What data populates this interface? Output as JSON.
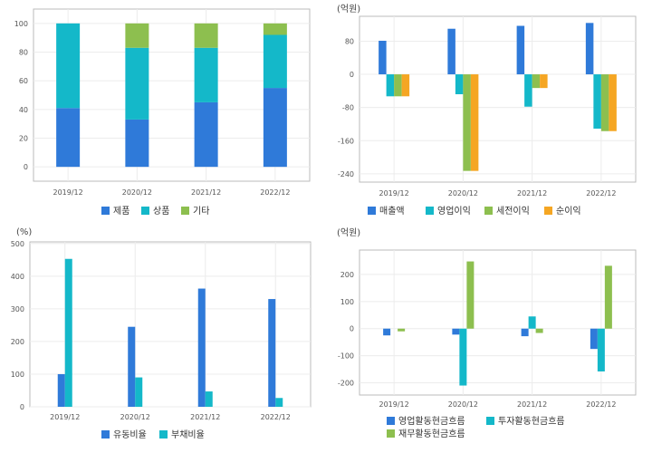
{
  "chart_data": [
    {
      "type": "bar",
      "stacked": true,
      "unit": "",
      "categories": [
        "2019/12",
        "2020/12",
        "2021/12",
        "2022/12"
      ],
      "series": [
        {
          "name": "제품",
          "color": "#2f7ad9",
          "values": [
            41,
            33,
            45,
            55
          ]
        },
        {
          "name": "상품",
          "color": "#14b8c9",
          "values": [
            59,
            50,
            38,
            37
          ]
        },
        {
          "name": "기타",
          "color": "#8dbf4f",
          "values": [
            0,
            17,
            17,
            8
          ]
        }
      ],
      "yticks": [
        0,
        20,
        40,
        60,
        80,
        100
      ],
      "ylim": [
        -10,
        110
      ],
      "grid": true,
      "legend": "bottom"
    },
    {
      "type": "bar",
      "unit": "(억원)",
      "categories": [
        "2019/12",
        "2020/12",
        "2021/12",
        "2022/12"
      ],
      "series": [
        {
          "name": "매출액",
          "color": "#2f7ad9",
          "values": [
            81,
            110,
            117,
            124
          ]
        },
        {
          "name": "영업이익",
          "color": "#14b8c9",
          "values": [
            -53,
            -48,
            -78,
            -131
          ]
        },
        {
          "name": "세전이익",
          "color": "#8dbf4f",
          "values": [
            -53,
            -233,
            -33,
            -137
          ]
        },
        {
          "name": "순이익",
          "color": "#f5a623",
          "values": [
            -53,
            -233,
            -33,
            -137
          ]
        }
      ],
      "yticks": [
        -240,
        -160,
        -80,
        0,
        80
      ],
      "ylim": [
        -260,
        140
      ],
      "grid": true,
      "legend": "bottom"
    },
    {
      "type": "bar",
      "unit": "(%)",
      "categories": [
        "2019/12",
        "2020/12",
        "2021/12",
        "2022/12"
      ],
      "series": [
        {
          "name": "유동비율",
          "color": "#2f7ad9",
          "values": [
            100,
            245,
            362,
            330
          ]
        },
        {
          "name": "부채비율",
          "color": "#14b8c9",
          "values": [
            453,
            90,
            47,
            27
          ]
        }
      ],
      "yticks": [
        0,
        100,
        200,
        300,
        400,
        500
      ],
      "ylim": [
        0,
        505
      ],
      "grid": true,
      "legend": "bottom"
    },
    {
      "type": "bar",
      "unit": "(억원)",
      "categories": [
        "2019/12",
        "2020/12",
        "2021/12",
        "2022/12"
      ],
      "series": [
        {
          "name": "영업활동현금흐름",
          "color": "#2f7ad9",
          "values": [
            -25,
            -22,
            -28,
            -75
          ]
        },
        {
          "name": "투자활동현금흐름",
          "color": "#14b8c9",
          "values": [
            0,
            -210,
            45,
            -158
          ]
        },
        {
          "name": "재무활동현금흐름",
          "color": "#8dbf4f",
          "values": [
            -10,
            248,
            -16,
            232
          ]
        }
      ],
      "yticks": [
        -200,
        -100,
        0,
        100,
        200
      ],
      "ylim": [
        -245,
        290
      ],
      "grid": true,
      "legend": "bottom"
    }
  ]
}
